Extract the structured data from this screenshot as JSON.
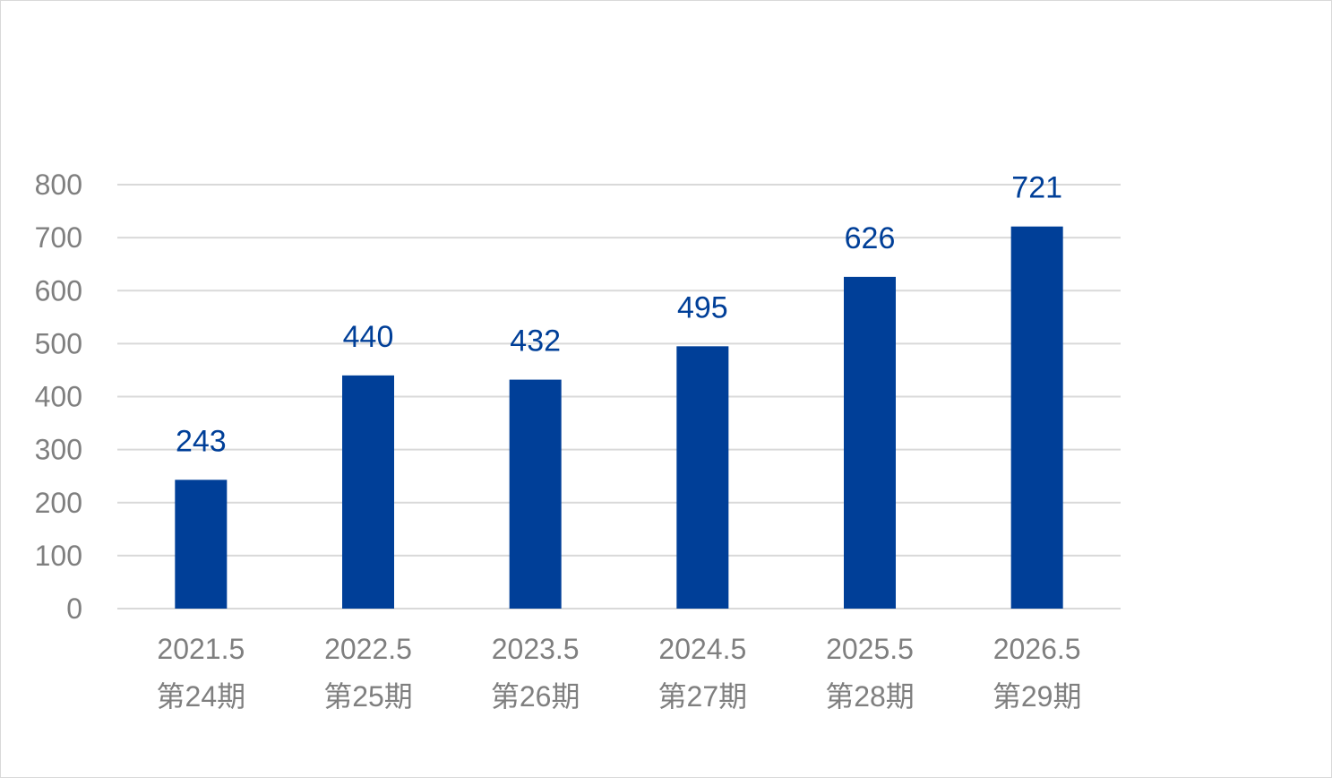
{
  "chart_data": {
    "type": "bar",
    "categories": [
      [
        "2021.5",
        "第24期"
      ],
      [
        "2022.5",
        "第25期"
      ],
      [
        "2023.5",
        "第26期"
      ],
      [
        "2024.5",
        "第27期"
      ],
      [
        "2025.5",
        "第28期"
      ],
      [
        "2026.5",
        "第29期"
      ]
    ],
    "values": [
      243,
      440,
      432,
      495,
      626,
      721
    ],
    "ylim": [
      0,
      800
    ],
    "yticks": [
      0,
      100,
      200,
      300,
      400,
      500,
      600,
      700,
      800
    ],
    "grid": true,
    "legend": "none",
    "colors": {
      "bar": "#003f98",
      "label": "#003f98",
      "tick": "#7f7f7f",
      "grid": "#d9d9d9"
    }
  }
}
